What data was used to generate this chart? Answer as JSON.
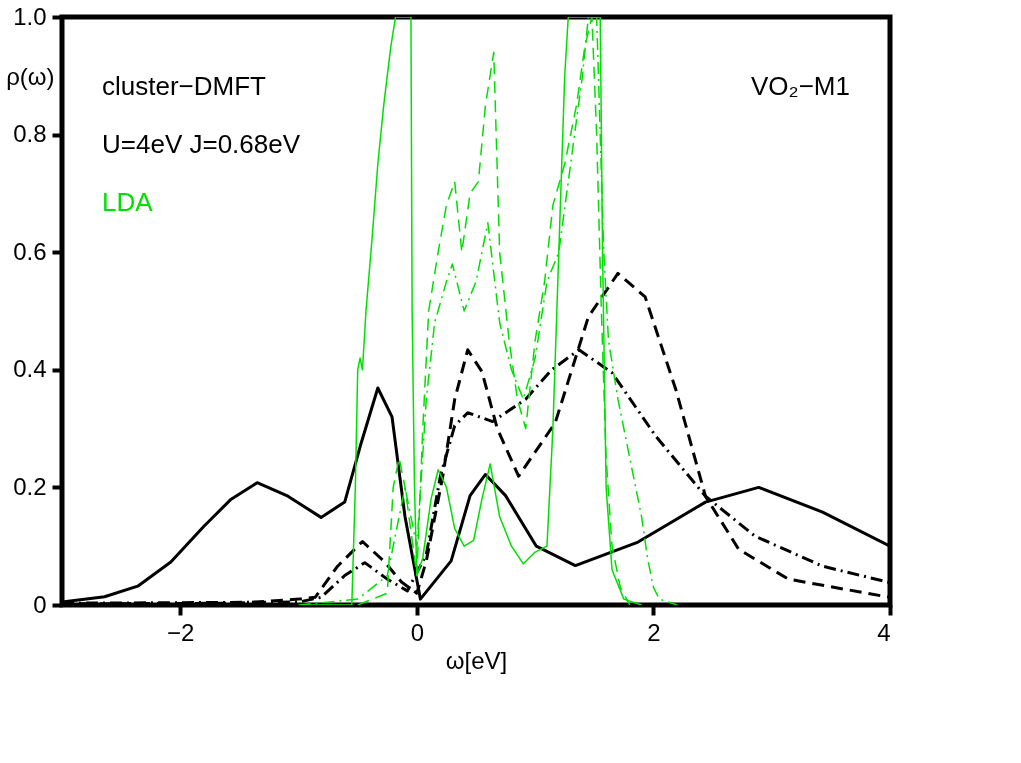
{
  "chart_data": {
    "type": "line",
    "xlabel": "ω[eV]",
    "ylabel": "ρ(ω)",
    "annotations": [
      "cluster−DMFT",
      "U=4eV  J=0.68eV",
      "LDA",
      "VO₂−M1"
    ],
    "xlim": [
      -3,
      4
    ],
    "xticks": [
      -2,
      0,
      2,
      4
    ],
    "ylim": [
      0,
      1
    ],
    "yticks": [
      0,
      0.2,
      0.4,
      0.6,
      0.8,
      {
        "value": 1,
        "label": "1.0"
      }
    ],
    "grid": false,
    "series": [
      {
        "color": "#000000",
        "line_style": "solid",
        "x": [
          -3,
          -2.64,
          -2.36,
          -2.08,
          -1.8,
          -1.57,
          -1.35,
          -1.09,
          -0.81,
          -0.61,
          -0.47,
          -0.33,
          -0.21,
          -0.1,
          0.03,
          0.29,
          0.45,
          0.58,
          0.75,
          1.01,
          1.34,
          1.87,
          2.44,
          2.89,
          3.43,
          4
        ],
        "values": [
          0.005,
          0.014,
          0.032,
          0.073,
          0.134,
          0.18,
          0.208,
          0.185,
          0.149,
          0.175,
          0.276,
          0.369,
          0.32,
          0.15,
          0.01,
          0.075,
          0.186,
          0.222,
          0.186,
          0.1,
          0.067,
          0.107,
          0.175,
          0.2,
          0.158,
          0.1
        ]
      },
      {
        "color": "#000000",
        "line_style": "dashed",
        "x": [
          -3,
          -1.5,
          -1.0,
          -0.86,
          -0.67,
          -0.46,
          -0.27,
          -0.13,
          0.0,
          0.08,
          0.22,
          0.32,
          0.43,
          0.55,
          0.68,
          0.86,
          1.17,
          1.45,
          1.7,
          1.93,
          2.19,
          2.44,
          2.72,
          3.14,
          4
        ],
        "values": [
          0.002,
          0.003,
          0.01,
          0.013,
          0.066,
          0.108,
          0.073,
          0.039,
          0.02,
          0.075,
          0.22,
          0.35,
          0.434,
          0.397,
          0.3,
          0.219,
          0.31,
          0.49,
          0.564,
          0.524,
          0.366,
          0.185,
          0.095,
          0.044,
          0.013
        ]
      },
      {
        "color": "#000000",
        "line_style": "dashdot",
        "x": [
          -3,
          -1.0,
          -0.81,
          -0.61,
          -0.44,
          -0.25,
          -0.08,
          0.08,
          0.2,
          0.32,
          0.43,
          0.64,
          0.92,
          1.14,
          1.37,
          1.65,
          2.02,
          2.44,
          2.86,
          3.43,
          4
        ],
        "values": [
          0.003,
          0.005,
          0.013,
          0.05,
          0.072,
          0.044,
          0.024,
          0.086,
          0.22,
          0.305,
          0.327,
          0.312,
          0.35,
          0.4,
          0.434,
          0.395,
          0.287,
          0.185,
          0.117,
          0.066,
          0.038
        ]
      },
      {
        "color": "#00e000",
        "line_style": "solid",
        "x": [
          -0.95,
          -0.55,
          -0.52,
          -0.5,
          -0.48,
          -0.46,
          -0.43,
          -0.38,
          -0.33,
          -0.28,
          -0.22,
          -0.18,
          -0.05,
          -0.04,
          -0.02,
          0.0,
          0.05,
          0.12,
          0.18,
          0.25,
          0.32,
          0.4,
          0.48,
          0.55,
          0.62,
          0.7,
          0.8,
          0.9,
          1.0,
          1.1,
          1.15,
          1.2,
          1.25,
          1.28,
          1.55,
          1.57,
          1.6,
          1.65,
          1.75,
          1.9
        ],
        "values": [
          0,
          0.0,
          0.2,
          0.4,
          0.42,
          0.4,
          0.5,
          0.62,
          0.75,
          0.85,
          0.95,
          1.0,
          1.0,
          0.5,
          0.2,
          0.05,
          0.08,
          0.18,
          0.23,
          0.2,
          0.13,
          0.1,
          0.11,
          0.18,
          0.24,
          0.15,
          0.1,
          0.07,
          0.09,
          0.1,
          0.3,
          0.6,
          0.9,
          1.0,
          1.0,
          0.6,
          0.2,
          0.06,
          0.01,
          0.0
        ]
      },
      {
        "color": "#00e000",
        "line_style": "dashed",
        "x": [
          -0.5,
          -0.25,
          -0.2,
          -0.15,
          -0.1,
          0.0,
          0.05,
          0.1,
          0.18,
          0.25,
          0.32,
          0.38,
          0.45,
          0.52,
          0.58,
          0.65,
          0.7,
          0.78,
          0.85,
          0.92,
          1.0,
          1.08,
          1.15,
          1.25,
          1.35,
          1.42,
          1.48,
          1.52,
          1.56,
          1.6,
          1.65,
          1.72,
          1.8
        ],
        "values": [
          0,
          0.02,
          0.2,
          0.25,
          0.2,
          0.05,
          0.3,
          0.5,
          0.6,
          0.68,
          0.72,
          0.6,
          0.7,
          0.72,
          0.85,
          0.94,
          0.6,
          0.45,
          0.35,
          0.3,
          0.45,
          0.55,
          0.68,
          0.75,
          0.85,
          0.95,
          1.0,
          0.8,
          0.5,
          0.25,
          0.1,
          0.03,
          0.0
        ]
      },
      {
        "color": "#00e000",
        "line_style": "dashdot",
        "x": [
          -1.0,
          -0.5,
          -0.25,
          -0.15,
          -0.1,
          0.0,
          0.08,
          0.15,
          0.25,
          0.3,
          0.4,
          0.5,
          0.6,
          0.7,
          0.8,
          0.9,
          1.0,
          1.1,
          1.2,
          1.3,
          1.4,
          1.45,
          1.52,
          1.58,
          1.62,
          1.7,
          1.8,
          1.9,
          1.95,
          2.0,
          2.05,
          2.2
        ],
        "values": [
          0,
          0.01,
          0.05,
          0.15,
          0.2,
          0.1,
          0.35,
          0.48,
          0.55,
          0.58,
          0.5,
          0.55,
          0.65,
          0.48,
          0.4,
          0.35,
          0.42,
          0.55,
          0.6,
          0.75,
          0.9,
          1.0,
          1.0,
          0.6,
          0.45,
          0.35,
          0.25,
          0.15,
          0.08,
          0.03,
          0.01,
          0.0
        ]
      }
    ]
  }
}
